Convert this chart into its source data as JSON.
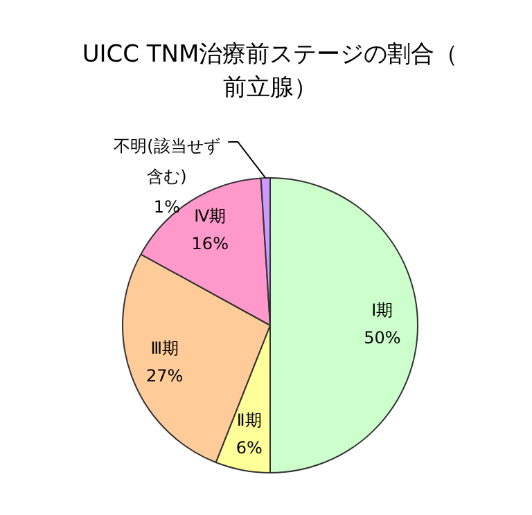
{
  "chart_data": {
    "type": "pie",
    "title": "UICC TNM治療前ステージの割合（前立腺）",
    "categories": [
      "Ⅰ期",
      "Ⅱ期",
      "Ⅲ期",
      "Ⅳ期",
      "不明(該当せず含む)"
    ],
    "values": [
      50,
      6,
      27,
      16,
      1
    ],
    "value_labels": [
      "50%",
      "6%",
      "27%",
      "16%",
      "1%"
    ],
    "colors": [
      "#ccffcc",
      "#ffff99",
      "#ffcc99",
      "#ff99cc",
      "#cc99ff"
    ],
    "legend": false
  }
}
